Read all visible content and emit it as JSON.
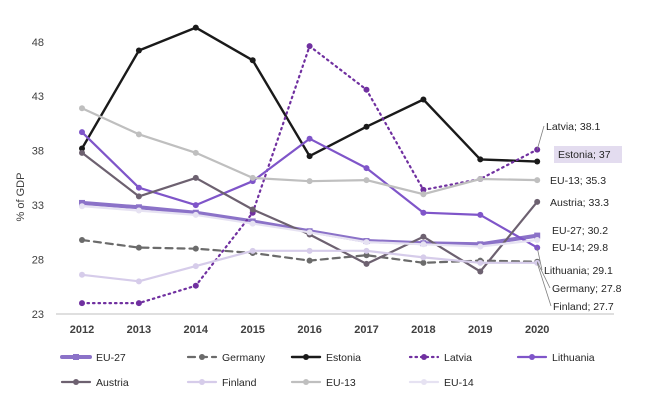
{
  "chart_data": {
    "type": "line",
    "ylabel": "% of GDP",
    "ylim": [
      23,
      50
    ],
    "yticks": [
      23,
      28,
      33,
      38,
      43,
      48
    ],
    "x": [
      "2012",
      "2013",
      "2014",
      "2015",
      "2016",
      "2017",
      "2018",
      "2019",
      "2020"
    ],
    "series": [
      {
        "name": "EU-27",
        "color": "#8b72c8",
        "dash": "solid",
        "width": 4,
        "marker": "square",
        "values": [
          33.2,
          32.8,
          32.3,
          31.5,
          30.6,
          29.7,
          29.5,
          29.4,
          30.2
        ]
      },
      {
        "name": "Germany",
        "color": "#6b6b6b",
        "dash": "dash",
        "width": 2.2,
        "marker": "circle",
        "values": [
          29.8,
          29.1,
          29.0,
          28.6,
          27.9,
          28.4,
          27.7,
          27.9,
          27.8
        ]
      },
      {
        "name": "Estonia",
        "color": "#1a1a1a",
        "dash": "solid",
        "width": 2.4,
        "marker": "circle",
        "values": [
          38.2,
          47.2,
          49.3,
          46.3,
          37.5,
          40.2,
          42.7,
          37.2,
          37.0
        ]
      },
      {
        "name": "Latvia",
        "color": "#7030a0",
        "dash": "dot",
        "width": 2.2,
        "marker": "circle",
        "values": [
          24.0,
          24.0,
          25.6,
          32.3,
          47.6,
          43.6,
          34.4,
          35.4,
          38.1
        ]
      },
      {
        "name": "Lithuania",
        "color": "#7f55c9",
        "dash": "solid",
        "width": 2.2,
        "marker": "circle",
        "values": [
          39.7,
          34.6,
          33.0,
          35.2,
          39.1,
          36.4,
          32.3,
          32.1,
          29.1
        ]
      },
      {
        "name": "Austria",
        "color": "#6d6170",
        "dash": "solid",
        "width": 2.2,
        "marker": "circle",
        "values": [
          37.8,
          33.8,
          35.5,
          32.6,
          30.3,
          27.6,
          30.1,
          26.9,
          33.3
        ]
      },
      {
        "name": "Finland",
        "color": "#d6ccea",
        "dash": "solid",
        "width": 2.2,
        "marker": "circle",
        "values": [
          26.6,
          26.0,
          27.4,
          28.8,
          28.8,
          28.8,
          28.2,
          27.7,
          27.7
        ]
      },
      {
        "name": "EU-13",
        "color": "#bfbfbf",
        "dash": "solid",
        "width": 2.2,
        "marker": "circle",
        "values": [
          41.9,
          39.5,
          37.8,
          35.5,
          35.2,
          35.3,
          34.0,
          35.4,
          35.3
        ]
      },
      {
        "name": "EU-14",
        "color": "#e6e2f2",
        "dash": "solid",
        "width": 2.2,
        "marker": "circle",
        "values": [
          32.9,
          32.5,
          32.1,
          31.3,
          30.5,
          29.6,
          29.4,
          29.2,
          29.8
        ]
      }
    ],
    "annotations": [
      {
        "text": "Latvia; 38.1",
        "series": "Latvia",
        "boxed": false
      },
      {
        "text": "Estonia; 37",
        "series": "Estonia",
        "boxed": true
      },
      {
        "text": "EU-13; 35.3",
        "series": "EU-13",
        "boxed": false
      },
      {
        "text": "Austria; 33.3",
        "series": "Austria",
        "boxed": false
      },
      {
        "text": "EU-27; 30.2",
        "series": "EU-27",
        "boxed": false
      },
      {
        "text": "EU-14; 29.8",
        "series": "EU-14",
        "boxed": false
      },
      {
        "text": "Lithuania; 29.1",
        "series": "Lithuania",
        "boxed": false
      },
      {
        "text": "Germany; 27.8",
        "series": "Germany",
        "boxed": false
      },
      {
        "text": "Finland; 27.7",
        "series": "Finland",
        "boxed": false
      }
    ],
    "legend": {
      "placement": "bottom",
      "rows": [
        [
          "EU-27",
          "Germany",
          "Estonia",
          "Latvia",
          "Lithuania"
        ],
        [
          "Austria",
          "Finland",
          "EU-13",
          "EU-14"
        ]
      ]
    },
    "grid": false
  }
}
